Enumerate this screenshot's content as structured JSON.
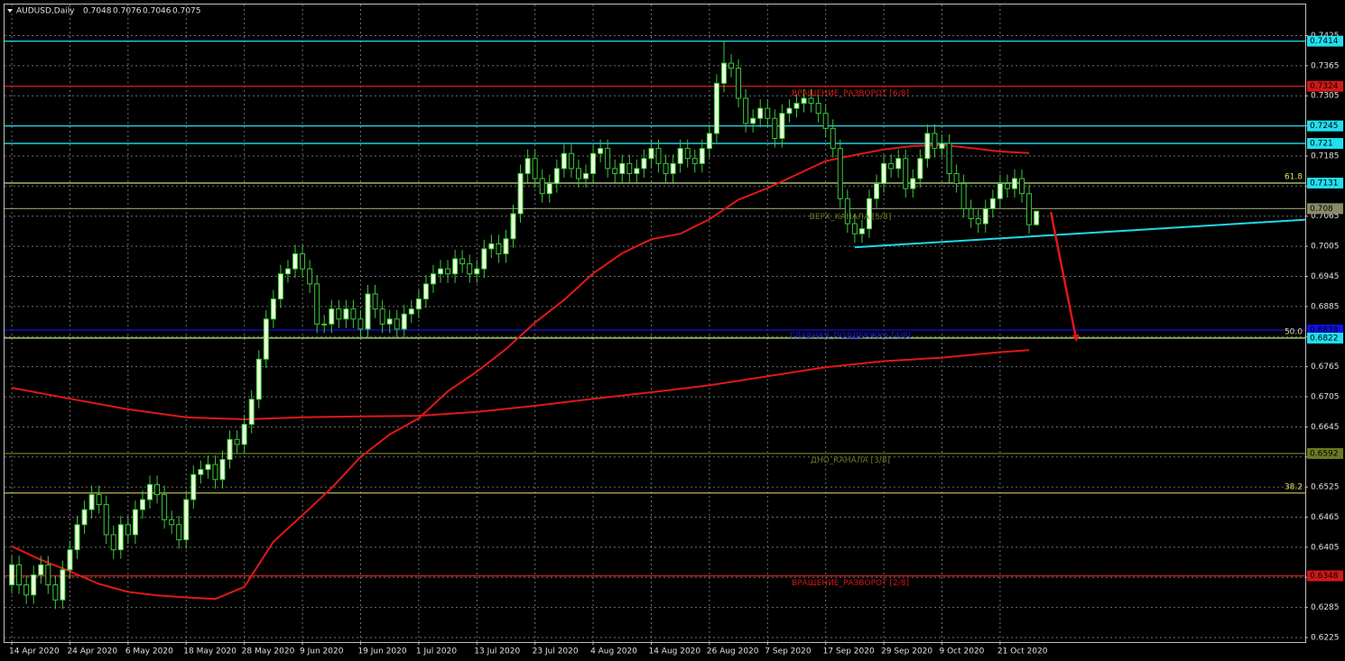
{
  "chart_data": {
    "type": "candlestick",
    "title": "AUDUSD,Daily",
    "quote": [
      0.7048,
      0.7076,
      0.7046,
      0.7075
    ],
    "categories": [
      "14 Apr 2020",
      null,
      null,
      null,
      null,
      null,
      null,
      null,
      "24 Apr 2020",
      null,
      null,
      null,
      null,
      null,
      null,
      null,
      "6 May 2020",
      null,
      null,
      null,
      null,
      null,
      null,
      null,
      "18 May 2020",
      null,
      null,
      null,
      null,
      null,
      null,
      null,
      "28 May 2020",
      null,
      null,
      null,
      null,
      null,
      null,
      null,
      "9 Jun 2020",
      null,
      null,
      null,
      null,
      null,
      null,
      null,
      "19 Jun 2020",
      null,
      null,
      null,
      null,
      null,
      null,
      null,
      "1 Jul 2020",
      null,
      null,
      null,
      null,
      null,
      null,
      null,
      "13 Jul 2020",
      null,
      null,
      null,
      null,
      null,
      null,
      null,
      "23 Jul 2020",
      null,
      null,
      null,
      null,
      null,
      null,
      null,
      "4 Aug 2020",
      null,
      null,
      null,
      null,
      null,
      null,
      null,
      "14 Aug 2020",
      null,
      null,
      null,
      null,
      null,
      null,
      null,
      "26 Aug 2020",
      null,
      null,
      null,
      null,
      null,
      null,
      null,
      "7 Sep 2020",
      null,
      null,
      null,
      null,
      null,
      null,
      null,
      "17 Sep 2020",
      null,
      null,
      null,
      null,
      null,
      null,
      null,
      "29 Sep 2020",
      null,
      null,
      null,
      null,
      null,
      null,
      null,
      "9 Oct 2020",
      null,
      null,
      null,
      null,
      null,
      null,
      null,
      "21 Oct 2020",
      null,
      null,
      null,
      null,
      null
    ],
    "open": [
      0.633,
      0.637,
      0.633,
      0.631,
      0.635,
      0.637,
      0.633,
      0.63,
      0.636,
      0.64,
      0.645,
      0.648,
      0.651,
      0.649,
      0.643,
      0.64,
      0.645,
      0.643,
      0.648,
      0.65,
      0.653,
      0.651,
      0.646,
      0.645,
      0.642,
      0.65,
      0.655,
      0.656,
      0.657,
      0.654,
      0.658,
      0.662,
      0.661,
      0.665,
      0.67,
      0.678,
      0.686,
      0.69,
      0.695,
      0.696,
      0.699,
      0.696,
      0.693,
      0.685,
      0.685,
      0.688,
      0.686,
      0.688,
      0.686,
      0.684,
      0.691,
      0.688,
      0.685,
      0.686,
      0.684,
      0.687,
      0.688,
      0.69,
      0.693,
      0.695,
      0.696,
      0.695,
      0.698,
      0.697,
      0.695,
      0.696,
      0.7,
      0.701,
      0.699,
      0.702,
      0.707,
      0.715,
      0.718,
      0.714,
      0.711,
      0.713,
      0.716,
      0.719,
      0.716,
      0.714,
      0.715,
      0.719,
      0.72,
      0.716,
      0.715,
      0.717,
      0.715,
      0.716,
      0.718,
      0.72,
      0.717,
      0.715,
      0.717,
      0.72,
      0.718,
      0.717,
      0.72,
      0.723,
      0.733,
      0.737,
      0.736,
      0.73,
      0.725,
      0.726,
      0.728,
      0.726,
      0.722,
      0.727,
      0.728,
      0.729,
      0.73,
      0.729,
      0.727,
      0.724,
      0.72,
      0.71,
      0.705,
      0.703,
      0.704,
      0.71,
      0.713,
      0.717,
      0.716,
      0.718,
      0.712,
      0.714,
      0.718,
      0.723,
      0.72,
      0.721,
      0.715,
      0.713,
      0.708,
      0.706,
      0.705,
      0.708,
      0.71,
      0.713,
      0.712,
      0.714,
      0.711,
      0.7048
    ],
    "high": [
      0.6388,
      0.6388,
      0.6348,
      0.6368,
      0.6388,
      0.6388,
      0.6348,
      0.6378,
      0.6418,
      0.6468,
      0.6498,
      0.6528,
      0.6528,
      0.6508,
      0.6448,
      0.6468,
      0.6468,
      0.6498,
      0.6518,
      0.6548,
      0.6548,
      0.6528,
      0.6478,
      0.6468,
      0.6518,
      0.6568,
      0.6578,
      0.6588,
      0.6588,
      0.6598,
      0.6638,
      0.6638,
      0.6668,
      0.6718,
      0.6798,
      0.6878,
      0.6918,
      0.6968,
      0.6978,
      0.7008,
      0.7008,
      0.6978,
      0.6948,
      0.6868,
      0.6898,
      0.6898,
      0.6898,
      0.6898,
      0.6878,
      0.6928,
      0.6928,
      0.6898,
      0.6878,
      0.6878,
      0.6888,
      0.6898,
      0.6918,
      0.6948,
      0.6968,
      0.6978,
      0.6978,
      0.6998,
      0.6998,
      0.6988,
      0.6978,
      0.7018,
      0.7028,
      0.7028,
      0.7038,
      0.7088,
      0.7168,
      0.7198,
      0.7198,
      0.7158,
      0.7148,
      0.7178,
      0.7208,
      0.7208,
      0.7178,
      0.7168,
      0.7208,
      0.7218,
      0.7218,
      0.7178,
      0.7188,
      0.7188,
      0.7178,
      0.7198,
      0.7218,
      0.7218,
      0.7188,
      0.7188,
      0.7218,
      0.7218,
      0.7198,
      0.7218,
      0.7248,
      0.7348,
      0.7414,
      0.7388,
      0.7378,
      0.7318,
      0.7278,
      0.7298,
      0.7298,
      0.7278,
      0.7288,
      0.7298,
      0.7308,
      0.7318,
      0.7318,
      0.7308,
      0.7288,
      0.7258,
      0.7218,
      0.7118,
      0.7068,
      0.7058,
      0.7118,
      0.7148,
      0.7188,
      0.7188,
      0.7198,
      0.7198,
      0.7158,
      0.7198,
      0.7248,
      0.7248,
      0.7228,
      0.7228,
      0.7168,
      0.7148,
      0.7098,
      0.7078,
      0.7098,
      0.7118,
      0.7148,
      0.7148,
      0.7158,
      0.7158,
      0.7128,
      0.7076
    ],
    "low": [
      0.6312,
      0.6312,
      0.6292,
      0.6292,
      0.6332,
      0.6312,
      0.6282,
      0.6282,
      0.6342,
      0.6382,
      0.6432,
      0.6462,
      0.6472,
      0.6412,
      0.6382,
      0.6382,
      0.6412,
      0.6412,
      0.6462,
      0.6482,
      0.6492,
      0.6442,
      0.6432,
      0.6402,
      0.6402,
      0.6482,
      0.6532,
      0.6542,
      0.6522,
      0.6522,
      0.6562,
      0.6592,
      0.6592,
      0.6632,
      0.6682,
      0.6762,
      0.6842,
      0.6882,
      0.6932,
      0.6942,
      0.6942,
      0.6912,
      0.6832,
      0.6832,
      0.6832,
      0.6842,
      0.6842,
      0.6842,
      0.6822,
      0.6822,
      0.6862,
      0.6832,
      0.6832,
      0.6822,
      0.6822,
      0.6852,
      0.6862,
      0.6882,
      0.6912,
      0.6932,
      0.6932,
      0.6932,
      0.6952,
      0.6932,
      0.6932,
      0.6942,
      0.6982,
      0.6972,
      0.6972,
      0.7002,
      0.7052,
      0.7132,
      0.7122,
      0.7092,
      0.7092,
      0.7112,
      0.7142,
      0.7142,
      0.7122,
      0.7122,
      0.7132,
      0.7172,
      0.7142,
      0.7132,
      0.7132,
      0.7132,
      0.7132,
      0.7142,
      0.7162,
      0.7152,
      0.7132,
      0.7132,
      0.7152,
      0.7162,
      0.7152,
      0.7152,
      0.7182,
      0.7212,
      0.7312,
      0.7342,
      0.7282,
      0.7232,
      0.7232,
      0.7242,
      0.7242,
      0.7202,
      0.7202,
      0.7252,
      0.7262,
      0.7272,
      0.7272,
      0.7252,
      0.7222,
      0.7182,
      0.7082,
      0.7032,
      0.7012,
      0.7012,
      0.7022,
      0.7082,
      0.7112,
      0.7142,
      0.7142,
      0.7102,
      0.7102,
      0.7122,
      0.7162,
      0.7182,
      0.7182,
      0.7132,
      0.7112,
      0.7062,
      0.7042,
      0.7032,
      0.7032,
      0.7062,
      0.7082,
      0.7102,
      0.7102,
      0.7092,
      0.703,
      0.7046
    ],
    "close": [
      0.637,
      0.633,
      0.631,
      0.635,
      0.637,
      0.633,
      0.63,
      0.636,
      0.64,
      0.645,
      0.648,
      0.651,
      0.649,
      0.643,
      0.64,
      0.645,
      0.643,
      0.648,
      0.65,
      0.653,
      0.651,
      0.646,
      0.645,
      0.642,
      0.65,
      0.655,
      0.656,
      0.657,
      0.654,
      0.658,
      0.662,
      0.661,
      0.665,
      0.67,
      0.678,
      0.686,
      0.69,
      0.695,
      0.696,
      0.699,
      0.696,
      0.693,
      0.685,
      0.685,
      0.688,
      0.686,
      0.688,
      0.686,
      0.684,
      0.691,
      0.688,
      0.685,
      0.686,
      0.684,
      0.687,
      0.688,
      0.69,
      0.693,
      0.695,
      0.696,
      0.695,
      0.698,
      0.697,
      0.695,
      0.696,
      0.7,
      0.701,
      0.699,
      0.702,
      0.707,
      0.715,
      0.718,
      0.714,
      0.711,
      0.713,
      0.716,
      0.719,
      0.716,
      0.714,
      0.715,
      0.719,
      0.72,
      0.716,
      0.715,
      0.717,
      0.715,
      0.716,
      0.718,
      0.72,
      0.717,
      0.715,
      0.717,
      0.72,
      0.718,
      0.717,
      0.72,
      0.723,
      0.733,
      0.737,
      0.736,
      0.73,
      0.725,
      0.726,
      0.728,
      0.726,
      0.722,
      0.727,
      0.728,
      0.729,
      0.73,
      0.729,
      0.727,
      0.724,
      0.72,
      0.71,
      0.705,
      0.703,
      0.704,
      0.71,
      0.713,
      0.717,
      0.716,
      0.718,
      0.712,
      0.714,
      0.718,
      0.723,
      0.72,
      0.721,
      0.715,
      0.713,
      0.708,
      0.706,
      0.705,
      0.708,
      0.71,
      0.713,
      0.712,
      0.714,
      0.711,
      0.7048,
      0.7075
    ],
    "bull_color": "#eaffd8",
    "bear_color": "#000000",
    "wick_color": "#3cc83c",
    "xlim": [
      -1,
      178
    ],
    "ylim": [
      0.6216,
      0.7487
    ],
    "yticks": [
      0.7425,
      0.7365,
      0.7305,
      0.7245,
      0.7185,
      0.7125,
      0.7065,
      0.7005,
      0.6945,
      0.6885,
      0.6825,
      0.6765,
      0.6705,
      0.6645,
      0.6585,
      0.6525,
      0.6465,
      0.6405,
      0.6345,
      0.6285,
      0.6225
    ],
    "grid": true,
    "lines": [
      {
        "color": "#e01818",
        "x": [
          0,
          4,
          8,
          12,
          16,
          20,
          24,
          28,
          32,
          36,
          40,
          44,
          48,
          52,
          56,
          60,
          64,
          68,
          72,
          76,
          80,
          84,
          88,
          92,
          96,
          100,
          104,
          108,
          112,
          116,
          120,
          124,
          128,
          132,
          136,
          140
        ],
        "values": [
          0.6407,
          0.638,
          0.6357,
          0.6332,
          0.6316,
          0.6309,
          0.6305,
          0.6302,
          0.6326,
          0.6416,
          0.6469,
          0.6523,
          0.6585,
          0.663,
          0.6662,
          0.6716,
          0.6755,
          0.68,
          0.6853,
          0.6898,
          0.6951,
          0.6991,
          0.7019,
          0.703,
          0.7059,
          0.7098,
          0.7121,
          0.7148,
          0.7175,
          0.7187,
          0.7198,
          0.7205,
          0.7207,
          0.7201,
          0.7194,
          0.7191
        ]
      },
      {
        "color": "#e01818",
        "x": [
          0,
          8,
          16,
          24,
          32,
          40,
          48,
          56,
          64,
          72,
          80,
          88,
          96,
          104,
          112,
          120,
          128,
          136,
          140
        ],
        "values": [
          0.6723,
          0.6701,
          0.668,
          0.6664,
          0.666,
          0.6664,
          0.6666,
          0.6667,
          0.6675,
          0.6687,
          0.6701,
          0.6714,
          0.6728,
          0.6746,
          0.6764,
          0.6776,
          0.6783,
          0.6794,
          0.6798
        ]
      },
      {
        "color": "#20d8e8",
        "x": [
          116,
          178
        ],
        "values": [
          0.7003,
          0.7058
        ]
      }
    ],
    "arrow": {
      "color": "#e01818",
      "x": [
        143,
        146.5
      ],
      "values": [
        0.7073,
        0.6818
      ]
    },
    "levels": [
      {
        "value": 0.7414,
        "color": "#20e0f0"
      },
      {
        "value": 0.7324,
        "color": "#d01818"
      },
      {
        "value": 0.7245,
        "color": "#20e0f0"
      },
      {
        "value": 0.721,
        "color": "#20e0f0"
      },
      {
        "value": 0.7131,
        "color": "#20e0f0"
      },
      {
        "value": 0.708,
        "color": "#8a8a6a"
      },
      {
        "value": 0.6838,
        "color": "#1010e8"
      },
      {
        "value": 0.6822,
        "color": "#20e0f0"
      },
      {
        "value": 0.6592,
        "color": "#6a7a20"
      },
      {
        "value": 0.6348,
        "color": "#d01818"
      }
    ],
    "fib_levels": [
      {
        "label": "61.8",
        "price": 0.7131,
        "color": "#e8e060"
      },
      {
        "label": "50.0",
        "price": 0.6822,
        "color": "#e8e060"
      },
      {
        "label": "38.2",
        "price": 0.6513,
        "color": "#e8e060"
      }
    ],
    "murrey_labels": [
      {
        "text": "ВРАЩЕНИЕ_РАЗВОРОТ [6/8]",
        "price": 0.731,
        "color": "#d01818"
      },
      {
        "text": "ВЕРХ_КАНАЛА [5/8]",
        "price": 0.7064,
        "color": "#6a7a20"
      },
      {
        "text": "ГЛАВНАЯ_ПОДДЕРЖКА [4/8]",
        "price": 0.6826,
        "color": "#1818e8"
      },
      {
        "text": "ДНО_КАНАЛА [3/8]",
        "price": 0.6578,
        "color": "#6a7a20"
      },
      {
        "text": "ВРАЩЕНИЕ_РАЗВОРОТ [2/8]",
        "price": 0.6334,
        "color": "#d01818"
      }
    ]
  }
}
